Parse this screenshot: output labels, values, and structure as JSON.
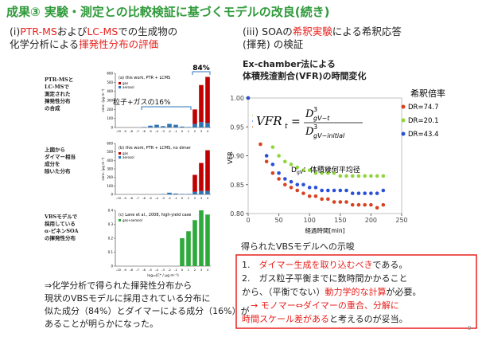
{
  "title": "成果③ 実験・測定との比較検証に基づくモデルの改良(続き)",
  "left_heading": [
    [
      {
        "text": "(i)",
        "color": "#222222"
      },
      {
        "text": "PTR-MS",
        "color": "#e8201c"
      },
      {
        "text": "および",
        "color": "#222222"
      },
      {
        "text": "LC-MS",
        "color": "#e8201c"
      },
      {
        "text": "での生成物の",
        "color": "#222222"
      }
    ],
    [
      {
        "text": "化学分析による",
        "color": "#222222"
      },
      {
        "text": "揮発性分布の評価",
        "color": "#e8201c"
      }
    ]
  ],
  "right_heading": [
    [
      {
        "text": "(iii) SOAの",
        "color": "#222222"
      },
      {
        "text": "希釈実験",
        "color": "#e8201c"
      },
      {
        "text": "による希釈応答",
        "color": "#222222"
      }
    ],
    [
      {
        "text": "(揮発) の検証",
        "color": "#222222"
      }
    ]
  ],
  "conclusion_left": [
    "⇒化学分析で得られた揮発性分布から",
    "現状のVBSモデルに採用されている分布に",
    "似た成分（84%）とダイマーによる成分（16%）が",
    "あることが明らかになった。"
  ],
  "ex_chamber": [
    "Ex-chamber法による",
    "体積残渣割合(VFR)の時間変化"
  ],
  "implications_title": "得られたVBSモデルへの示唆",
  "implications": [
    [
      {
        "text": "1.　",
        "color": "#222222"
      },
      {
        "text": "ダイマー生成を取り込むべき",
        "color": "#e8201c"
      },
      {
        "text": "である。",
        "color": "#222222"
      }
    ],
    [
      {
        "text": "2.　ガス粒子平衡までに数時間かかること",
        "color": "#222222"
      }
    ],
    [
      {
        "text": "から、（平衡でない）",
        "color": "#222222"
      },
      {
        "text": "動力学的な計算",
        "color": "#e8201c"
      },
      {
        "text": "が必要。",
        "color": "#222222"
      }
    ],
    [
      {
        "text": "　→ モノマー⇔ダイマーの重合、分解に",
        "color": "#e8201c"
      }
    ],
    [
      {
        "text": "時間スケール差がある",
        "color": "#e8201c"
      },
      {
        "text": "と考えるのが妥当。",
        "color": "#222222"
      }
    ]
  ],
  "page_number": "9",
  "chart_data": [
    {
      "type": "bar",
      "title": "(a) this work, PTR + LCMS",
      "description": [
        "PTR-MSと",
        "LC-MSで",
        "測定された",
        "揮発性分布",
        "の合成"
      ],
      "ylabel": "conc. (μg m⁻³)",
      "categories": [
        -10,
        -9,
        -8,
        -7,
        -6,
        -5,
        -4,
        -3,
        -2,
        -1,
        0,
        1,
        2,
        3,
        4
      ],
      "series": [
        {
          "name": "gas",
          "color": "#c00000",
          "values": [
            0,
            0,
            0,
            0,
            0,
            0,
            0,
            0,
            0,
            0,
            0,
            0,
            160,
            410,
            510
          ]
        },
        {
          "name": "aerosol",
          "color": "#2e75b6",
          "values": [
            0,
            0,
            0,
            0,
            5,
            20,
            30,
            15,
            40,
            30,
            10,
            5,
            40,
            60,
            50
          ]
        }
      ],
      "ylim": [
        0,
        600
      ],
      "yticks": [
        0,
        100,
        200,
        300,
        400,
        500,
        600
      ],
      "annotations": [
        "粒子+ガスの16%",
        "84%"
      ]
    },
    {
      "type": "bar",
      "title": "(b) this work, PTR + LCMS, no dimer",
      "description": [
        "上図から",
        "ダイマー相当",
        "成分を",
        "除いた分布"
      ],
      "ylabel": "conc. (μg m⁻³)",
      "categories": [
        -10,
        -9,
        -8,
        -7,
        -6,
        -5,
        -4,
        -3,
        -2,
        -1,
        0,
        1,
        2,
        3,
        4
      ],
      "series": [
        {
          "name": "gas",
          "color": "#c00000",
          "values": [
            0,
            0,
            0,
            0,
            0,
            0,
            0,
            0,
            0,
            0,
            0,
            0,
            200,
            330,
            480
          ]
        },
        {
          "name": "aerosol",
          "color": "#2e75b6",
          "values": [
            0,
            0,
            0,
            0,
            0,
            0,
            0,
            5,
            20,
            10,
            5,
            5,
            30,
            40,
            40
          ]
        }
      ],
      "ylim": [
        0,
        600
      ],
      "yticks": [
        0,
        100,
        200,
        300,
        400,
        500,
        600
      ]
    },
    {
      "type": "bar",
      "title": "(c) Lane et al., 2008, high-yield case",
      "description": [
        "VBSモデルで",
        "採用している",
        "α-ピネンSOA",
        "の揮発性分布"
      ],
      "xlabel": "log₁₀(C* / μg m⁻³)",
      "categories": [
        -10,
        -9,
        -8,
        -7,
        -6,
        -5,
        -4,
        -3,
        -2,
        -1,
        0,
        1,
        2,
        3,
        4
      ],
      "series": [
        {
          "name": "gas+aerosol",
          "color": "#2eaa3c",
          "values": [
            0,
            0,
            0,
            0,
            0,
            0,
            0,
            0,
            0,
            0,
            0.2,
            0.25,
            0.33,
            0.4,
            0.37
          ]
        }
      ],
      "ylim": [
        0,
        0.4
      ],
      "yticks": [
        0,
        0.1,
        0.2,
        0.3,
        0.4
      ]
    },
    {
      "type": "scatter",
      "xlabel": "経過時間[min]",
      "ylabel": "VFR",
      "legend_title": "希釈倍率",
      "equation": {
        "lhs": "VFR",
        "lhs_sub": "t",
        "eq": "=",
        "num": "D",
        "num_sup": "3",
        "num_sub": "gV−t",
        "den": "D",
        "den_sup": "3",
        "den_sub": "gV−initial"
      },
      "note": {
        "main": "D",
        "sub": "gV",
        "rest": "：体積幾何平均径"
      },
      "x": [
        0,
        10,
        20,
        30,
        40,
        50,
        60,
        70,
        80,
        90,
        100,
        110,
        120,
        130,
        140,
        150,
        160,
        170,
        180,
        190,
        200,
        210,
        220
      ],
      "series": [
        {
          "name": "DR=74.7",
          "color": "#d9421f",
          "values": [
            1.0,
            0.95,
            0.92,
            0.89,
            0.87,
            0.86,
            0.85,
            0.845,
            0.84,
            0.835,
            0.83,
            0.83,
            0.825,
            0.825,
            0.82,
            0.82,
            0.82,
            0.815,
            0.815,
            0.815,
            0.815,
            0.81,
            0.815
          ]
        },
        {
          "name": "DR=20.1",
          "color": "#8fd63a",
          "values": [
            1.0,
            0.97,
            0.95,
            0.93,
            0.915,
            0.9,
            0.89,
            0.885,
            0.88,
            0.875,
            0.875,
            0.87,
            0.87,
            0.87,
            0.87,
            0.865,
            0.865,
            0.865,
            0.865,
            0.865,
            0.865,
            0.865,
            0.865
          ]
        },
        {
          "name": "DR=43.4",
          "color": "#2a4fd8",
          "values": [
            1.0,
            0.96,
            0.93,
            0.9,
            0.885,
            0.87,
            0.86,
            0.855,
            0.85,
            0.85,
            0.845,
            0.845,
            0.84,
            0.84,
            0.84,
            0.84,
            0.84,
            0.835,
            0.835,
            0.835,
            0.835,
            0.835,
            0.84
          ]
        }
      ],
      "xlim": [
        0,
        250
      ],
      "xticks": [
        0,
        50,
        100,
        150,
        200,
        250
      ],
      "ylim": [
        0.8,
        1.0
      ],
      "yticks": [
        {
          "value": 0.8,
          "label": "0.80"
        },
        {
          "value": 0.85,
          "label": "0.85"
        },
        {
          "value": 0.9,
          "label": "0.90"
        },
        {
          "value": 0.95,
          "label": "0.95"
        },
        {
          "value": 1.0,
          "label": "1.00"
        }
      ]
    }
  ]
}
